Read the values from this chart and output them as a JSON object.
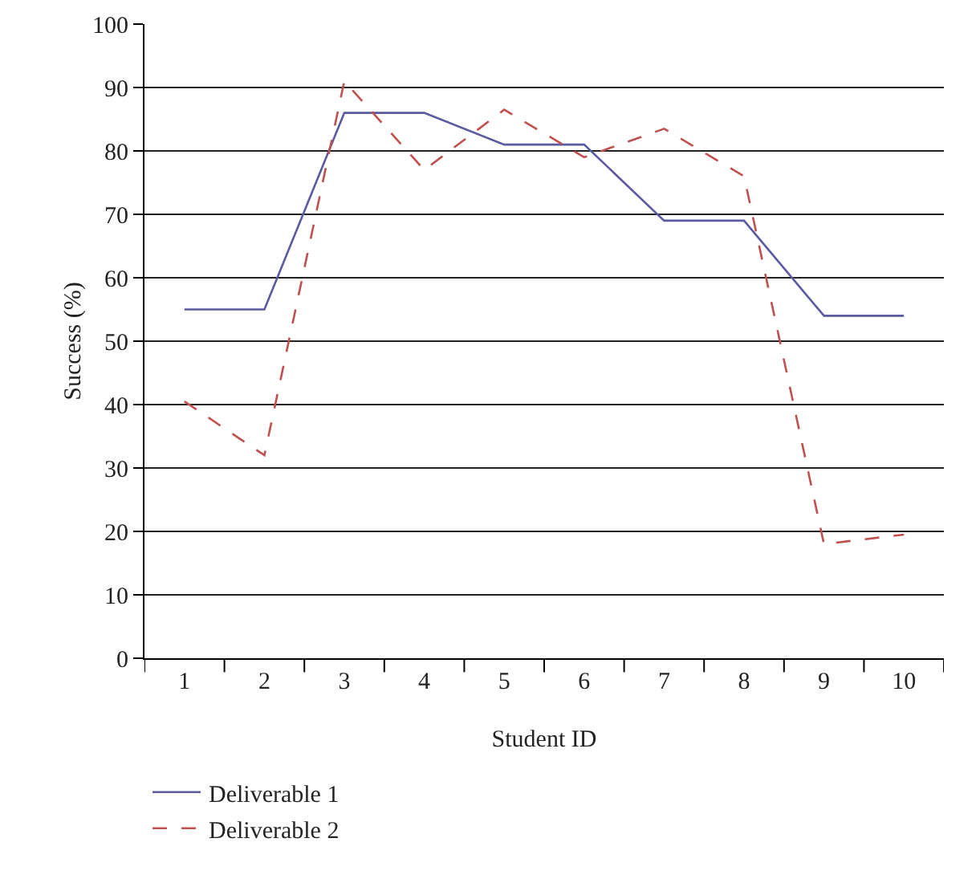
{
  "chart_data": {
    "type": "line",
    "xlabel": "Student ID",
    "ylabel": "Success (%)",
    "categories": [
      "1",
      "2",
      "3",
      "4",
      "5",
      "6",
      "7",
      "8",
      "9",
      "10"
    ],
    "series": [
      {
        "name": "Deliverable 1",
        "color": "#5a5aa0",
        "line_style": "solid",
        "values": [
          55,
          55,
          86,
          86,
          81,
          81,
          69,
          69,
          54,
          54
        ]
      },
      {
        "name": "Deliverable 2",
        "color": "#c0504d",
        "line_style": "dashed",
        "values": [
          40.5,
          32,
          91,
          77,
          86.5,
          79,
          83.5,
          76,
          18,
          19.5
        ]
      }
    ],
    "ylim": [
      0,
      100
    ],
    "yticks": [
      0,
      10,
      20,
      30,
      40,
      50,
      60,
      70,
      80,
      90,
      100
    ],
    "grid": "y",
    "legend": "bottom left",
    "marker": "none"
  }
}
